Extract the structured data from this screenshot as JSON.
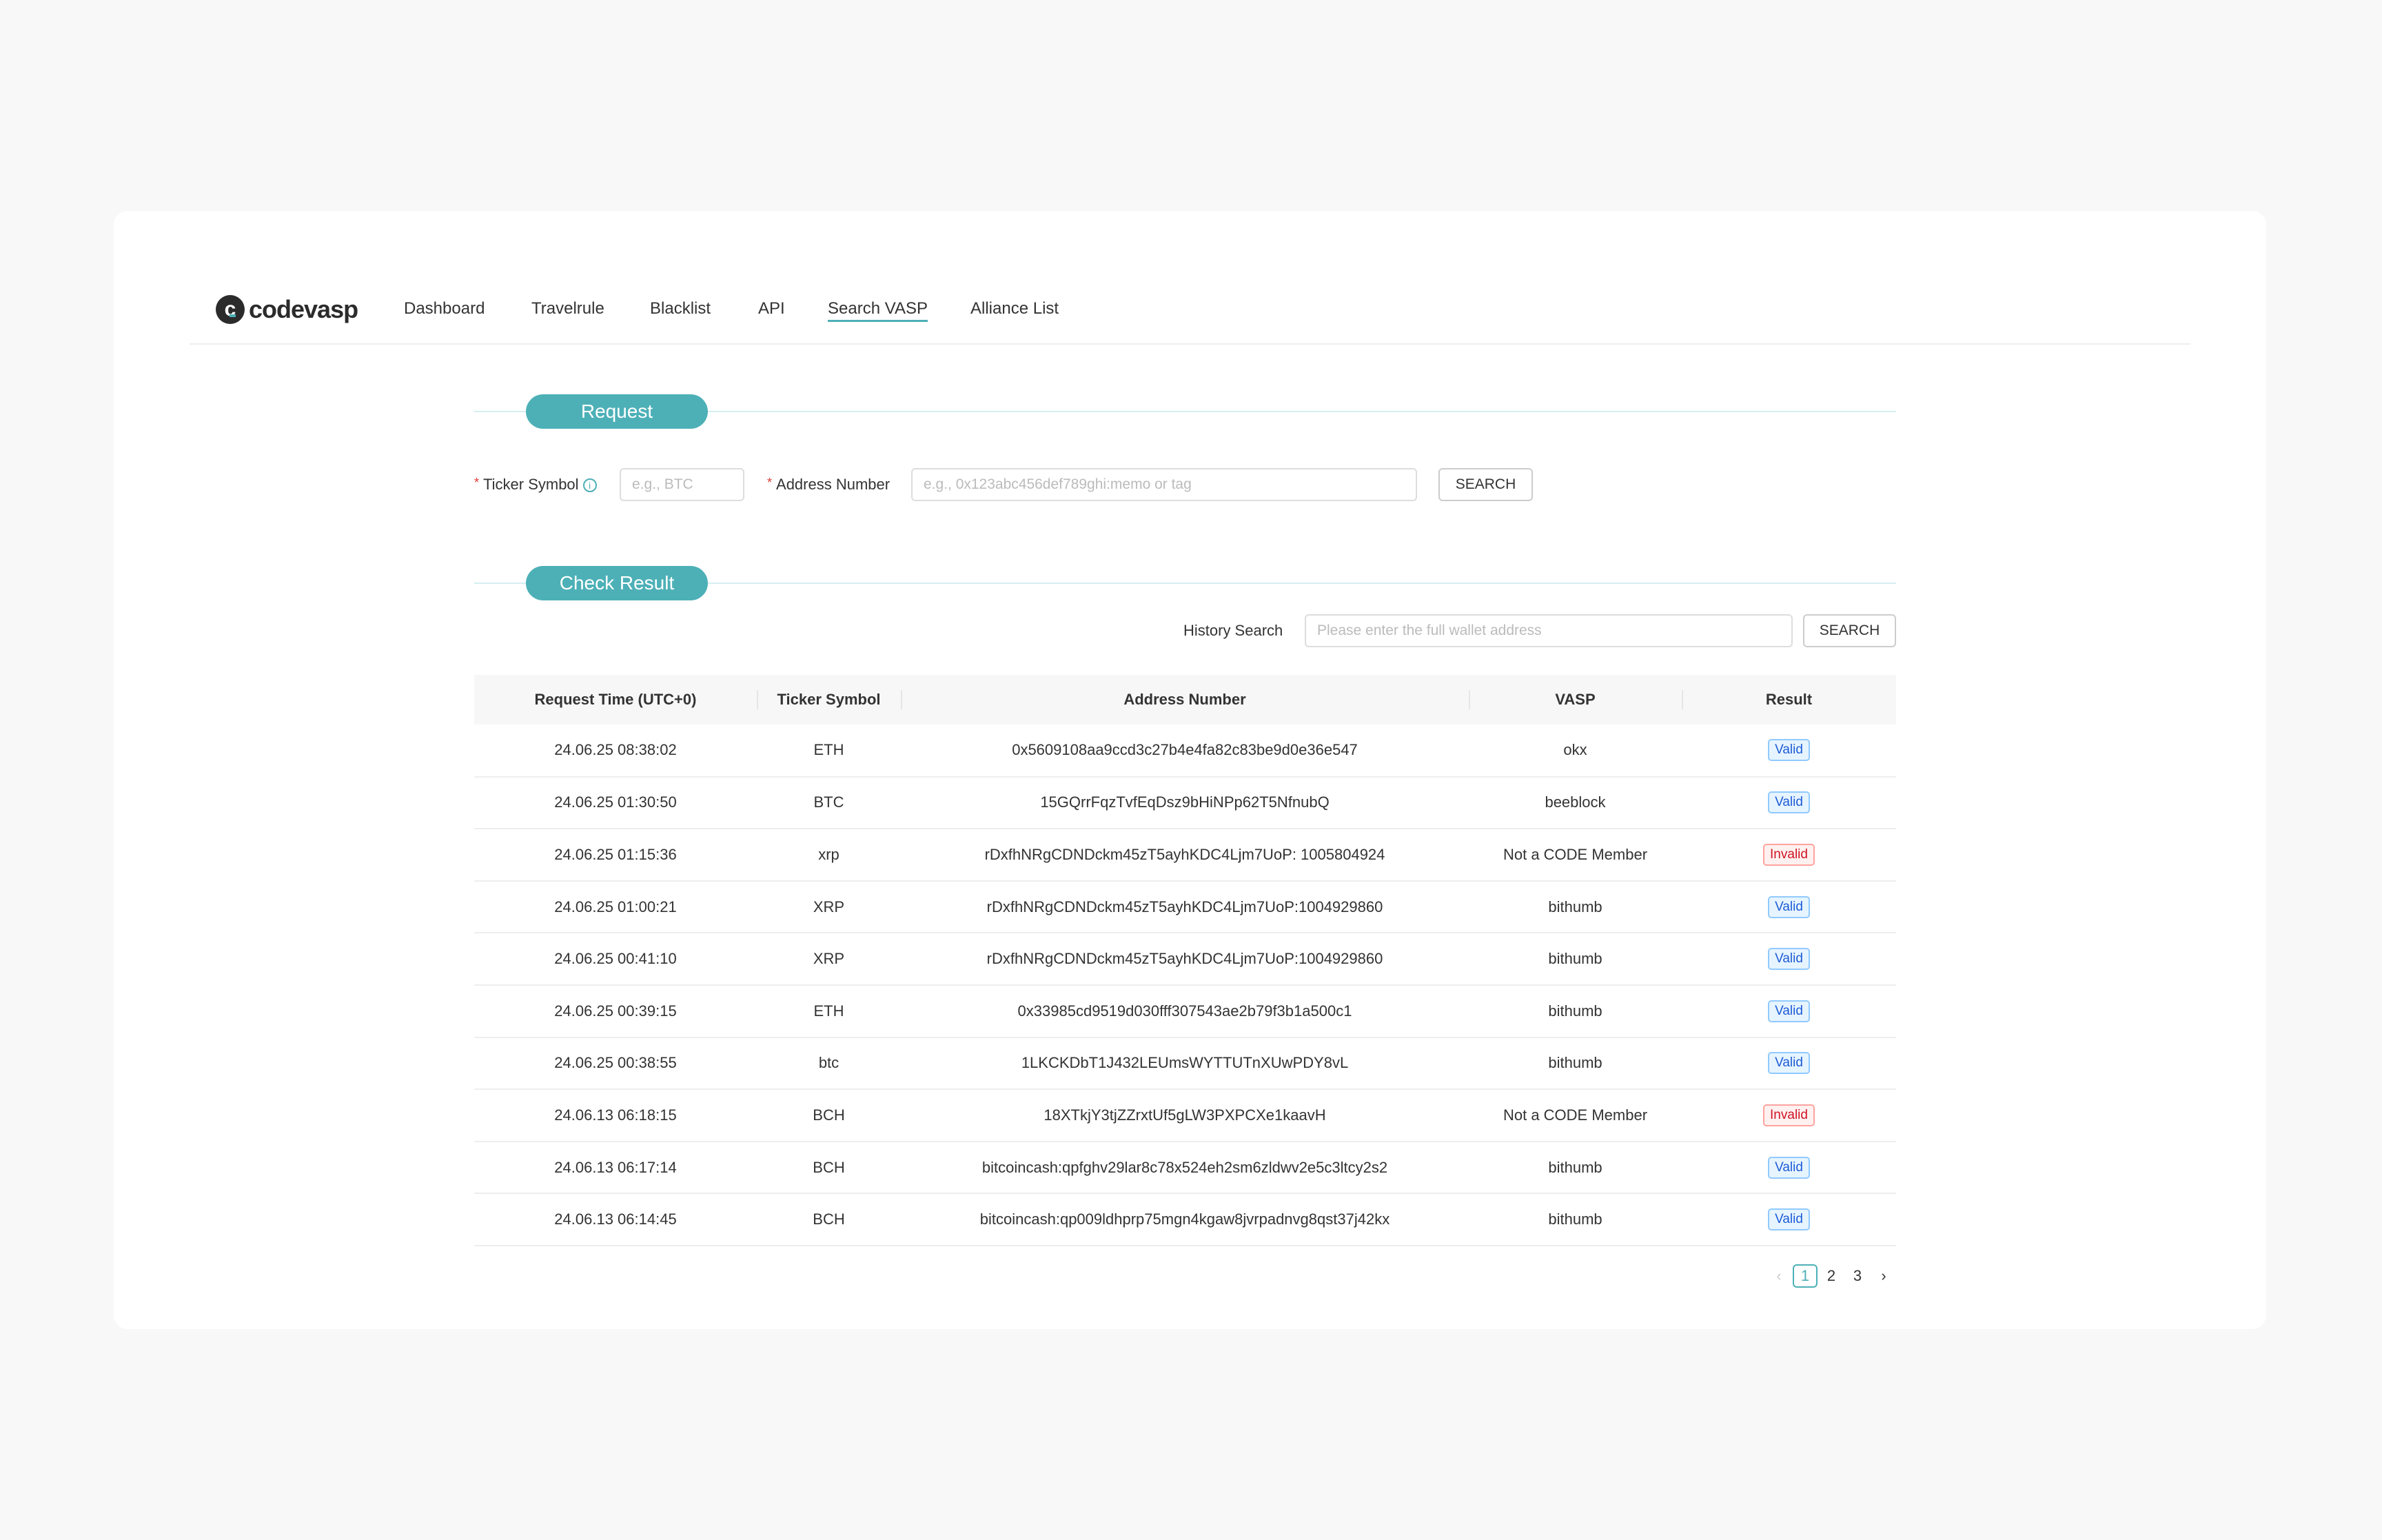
{
  "brand": {
    "name": "codevasp",
    "logo_letter": "c"
  },
  "nav": {
    "items": [
      {
        "label": "Dashboard"
      },
      {
        "label": "Travelrule"
      },
      {
        "label": "Blacklist"
      },
      {
        "label": "API"
      },
      {
        "label": "Search VASP",
        "active": true
      },
      {
        "label": "Alliance List"
      }
    ]
  },
  "request": {
    "title": "Request",
    "ticker_label": "Ticker Symbol",
    "ticker_placeholder": "e.g., BTC",
    "address_label": "Address Number",
    "address_placeholder": "e.g., 0x123abc456def789ghi:memo or tag",
    "search_label": "SEARCH",
    "required_mark": "*",
    "info_icon": "i"
  },
  "result": {
    "title": "Check Result",
    "history_label": "History Search",
    "history_placeholder": "Please enter the full wallet address",
    "search_label": "SEARCH"
  },
  "table": {
    "columns": [
      "Request Time (UTC+0)",
      "Ticker Symbol",
      "Address Number",
      "VASP",
      "Result"
    ],
    "rows": [
      [
        "24.06.25 08:38:02",
        "ETH",
        "0x5609108aa9ccd3c27b4e4fa82c83be9d0e36e547",
        "okx",
        "Valid"
      ],
      [
        "24.06.25 01:30:50",
        "BTC",
        "15GQrrFqzTvfEqDsz9bHiNPp62T5NfnubQ",
        "beeblock",
        "Valid"
      ],
      [
        "24.06.25 01:15:36",
        "xrp",
        "rDxfhNRgCDNDckm45zT5ayhKDC4Ljm7UoP: 1005804924",
        "Not a CODE Member",
        "Invalid"
      ],
      [
        "24.06.25 01:00:21",
        "XRP",
        "rDxfhNRgCDNDckm45zT5ayhKDC4Ljm7UoP:1004929860",
        "bithumb",
        "Valid"
      ],
      [
        "24.06.25 00:41:10",
        "XRP",
        "rDxfhNRgCDNDckm45zT5ayhKDC4Ljm7UoP:1004929860",
        "bithumb",
        "Valid"
      ],
      [
        "24.06.25 00:39:15",
        "ETH",
        "0x33985cd9519d030fff307543ae2b79f3b1a500c1",
        "bithumb",
        "Valid"
      ],
      [
        "24.06.25 00:38:55",
        "btc",
        "1LKCKDbT1J432LEUmsWYTTUTnXUwPDY8vL",
        "bithumb",
        "Valid"
      ],
      [
        "24.06.13 06:18:15",
        "BCH",
        "18XTkjY3tjZZrxtUf5gLW3PXPCXe1kaavH",
        "Not a CODE Member",
        "Invalid"
      ],
      [
        "24.06.13 06:17:14",
        "BCH",
        "bitcoincash:qpfghv29lar8c78x524eh2sm6zldwv2e5c3ltcy2s2",
        "bithumb",
        "Valid"
      ],
      [
        "24.06.13 06:14:45",
        "BCH",
        "bitcoincash:qp009ldhprp75mgn4kgaw8jvrpadnvg8qst37j42kx",
        "bithumb",
        "Valid"
      ]
    ]
  },
  "pagination": {
    "prev": "‹",
    "next": "›",
    "pages": [
      "1",
      "2",
      "3"
    ],
    "current": "1"
  },
  "colors": {
    "accent": "#4db0b7",
    "valid": "#1d5bd6",
    "invalid": "#cf1322"
  }
}
